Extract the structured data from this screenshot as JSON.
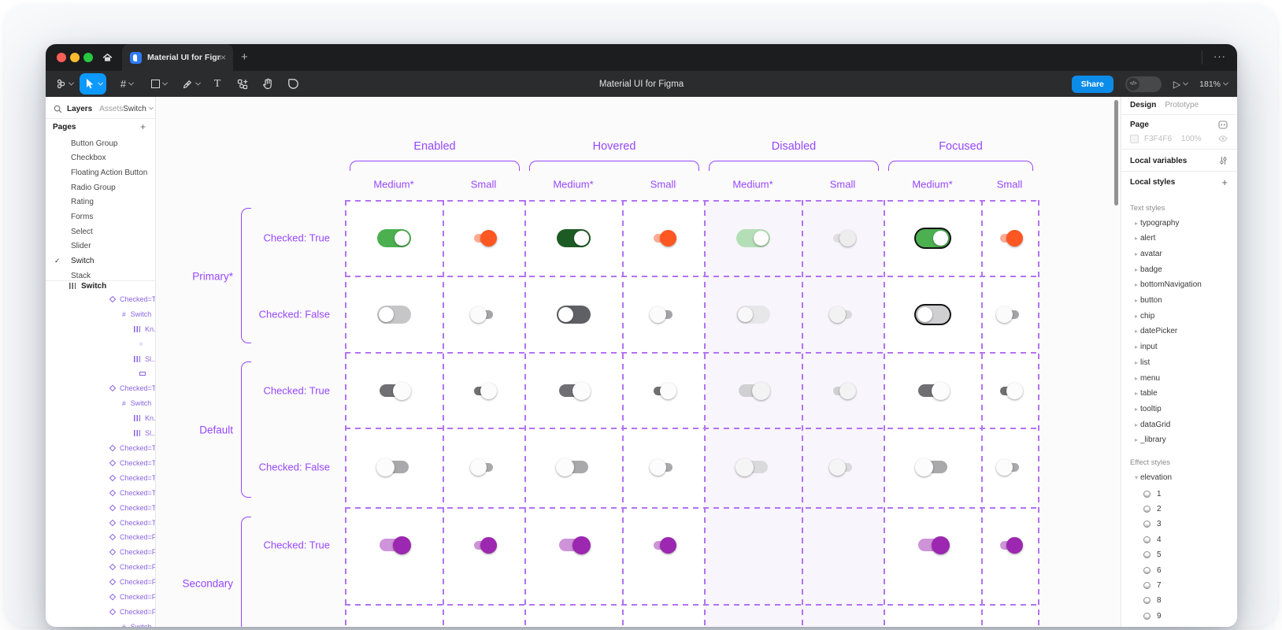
{
  "chrome": {
    "tab_title": "Material UI for Figma",
    "tab_close": "×",
    "new_tab": "+",
    "more_menu": "···",
    "window_title": "Material UI for Figma",
    "share_label": "Share",
    "dev_toggle_glyph": "</>",
    "play_glyph": "▷",
    "zoom_level": "181%"
  },
  "left_panel": {
    "tabs": {
      "layers": "Layers",
      "assets": "Assets"
    },
    "page_switcher": "Switch",
    "pages_header": "Pages",
    "add_page_glyph": "+",
    "active_page": "Switch",
    "pages": [
      "Button Group",
      "Checkbox",
      "Floating Action Button",
      "Radio Group",
      "Rating",
      "Forms",
      "Select",
      "Slider",
      "Switch",
      "Stack"
    ],
    "root_layer": {
      "icon": "autolayout",
      "label": "Switch"
    },
    "layers": [
      {
        "icon": "component",
        "label": "Checked=T...",
        "indent": 0
      },
      {
        "icon": "frame",
        "label": "Switch",
        "indent": 1
      },
      {
        "icon": "autolayout",
        "label": "Kn...",
        "indent": 2
      },
      {
        "icon": "ellipse",
        "label": "",
        "indent": 3
      },
      {
        "icon": "autolayout",
        "label": "Sl...",
        "indent": 2
      },
      {
        "icon": "rectangle",
        "label": "",
        "indent": 3
      },
      {
        "icon": "component",
        "label": "Checked=T...",
        "indent": 0
      },
      {
        "icon": "frame",
        "label": "Switch",
        "indent": 1
      },
      {
        "icon": "autolayout",
        "label": "Kn...",
        "indent": 2
      },
      {
        "icon": "autolayout",
        "label": "Sl...",
        "indent": 2
      },
      {
        "icon": "component",
        "label": "Checked=T...",
        "indent": 0
      },
      {
        "icon": "component",
        "label": "Checked=T...",
        "indent": 0
      },
      {
        "icon": "component",
        "label": "Checked=T...",
        "indent": 0
      },
      {
        "icon": "component",
        "label": "Checked=T...",
        "indent": 0
      },
      {
        "icon": "component",
        "label": "Checked=T...",
        "indent": 0
      },
      {
        "icon": "component",
        "label": "Checked=T...",
        "indent": 0
      },
      {
        "icon": "component",
        "label": "Checked=F...",
        "indent": 0
      },
      {
        "icon": "component",
        "label": "Checked=F...",
        "indent": 0
      },
      {
        "icon": "component",
        "label": "Checked=F...",
        "indent": 0
      },
      {
        "icon": "component",
        "label": "Checked=F...",
        "indent": 0
      },
      {
        "icon": "component",
        "label": "Checked=F...",
        "indent": 0
      },
      {
        "icon": "component",
        "label": "Checked=F...",
        "indent": 0
      },
      {
        "icon": "frame",
        "label": "Switch",
        "indent": 1
      }
    ]
  },
  "canvas": {
    "state_groups": [
      "Enabled",
      "Hovered",
      "Disabled",
      "Focused"
    ],
    "sizes": [
      "Medium*",
      "Small"
    ],
    "row_groups": [
      "Primary*",
      "Default",
      "Secondary"
    ],
    "row_labels": [
      "Checked: True",
      "Checked: False",
      "Checked: True",
      "Checked: False",
      "Checked: True"
    ],
    "cells": [
      {
        "r": 0,
        "c": 0,
        "t": "pill",
        "on": true,
        "tr": "#4caf50",
        "kn": "#ffffff"
      },
      {
        "r": 0,
        "c": 1,
        "t": "s",
        "on": true,
        "tr": "#ffab91",
        "kn": "#ff5722"
      },
      {
        "r": 0,
        "c": 2,
        "t": "pill",
        "on": true,
        "tr": "#1d5b24",
        "kn": "#ffffff"
      },
      {
        "r": 0,
        "c": 3,
        "t": "s",
        "on": true,
        "tr": "#ffab91",
        "kn": "#ff5722",
        "halo": "rgba(255,87,34,0.12)",
        "hs": 34
      },
      {
        "r": 0,
        "c": 4,
        "t": "pill",
        "on": true,
        "tr": "#b4dfb6",
        "kn": "#fdfdfd"
      },
      {
        "r": 0,
        "c": 5,
        "t": "s",
        "on": true,
        "tr": "#dfdfe2",
        "kn": "#ededee"
      },
      {
        "r": 0,
        "c": 6,
        "t": "pill",
        "on": true,
        "tr": "#4caf50",
        "kn": "#ffffff",
        "ring": "#121212"
      },
      {
        "r": 0,
        "c": 7,
        "t": "s",
        "on": true,
        "tr": "#ffab91",
        "kn": "#ff5722",
        "halo": "rgba(110,168,232,0.55)",
        "hs": 34
      },
      {
        "r": 1,
        "c": 0,
        "t": "pill",
        "on": false,
        "tr": "#c6c6c9",
        "kn": "#ffffff"
      },
      {
        "r": 1,
        "c": 1,
        "t": "s",
        "on": false,
        "tr": "#a4a4a8",
        "kn": "#fbfbfb"
      },
      {
        "r": 1,
        "c": 2,
        "t": "pill",
        "on": false,
        "tr": "#5e6065",
        "kn": "#ffffff"
      },
      {
        "r": 1,
        "c": 3,
        "t": "s",
        "on": false,
        "tr": "#a4a4a8",
        "kn": "#fbfbfb",
        "halo": "rgba(0,0,0,0.07)",
        "hs": 32
      },
      {
        "r": 1,
        "c": 4,
        "t": "pill",
        "on": false,
        "tr": "#e7e7ea",
        "kn": "#f8f8f8"
      },
      {
        "r": 1,
        "c": 5,
        "t": "s",
        "on": false,
        "tr": "#dadadd",
        "kn": "#f2f2f2"
      },
      {
        "r": 1,
        "c": 6,
        "t": "pill",
        "on": false,
        "tr": "#cfcfd2",
        "kn": "#ffffff",
        "ring": "#121212"
      },
      {
        "r": 1,
        "c": 7,
        "t": "s",
        "on": false,
        "tr": "#a4a4a8",
        "kn": "#fbfbfb",
        "halo": "rgba(0,0,0,0.05)",
        "hs": 30
      },
      {
        "r": 2,
        "c": 0,
        "t": "m",
        "on": true,
        "tr": "#707074",
        "kn": "#fcfcfc"
      },
      {
        "r": 2,
        "c": 1,
        "t": "s",
        "on": true,
        "tr": "#707074",
        "kn": "#fcfcfc"
      },
      {
        "r": 2,
        "c": 2,
        "t": "m",
        "on": true,
        "tr": "#707074",
        "kn": "#fcfcfc",
        "halo": "rgba(0,0,0,0.08)",
        "hs": 48
      },
      {
        "r": 2,
        "c": 3,
        "t": "s",
        "on": true,
        "tr": "#707074",
        "kn": "#fcfcfc",
        "halo": "rgba(0,0,0,0.06)",
        "hs": 34
      },
      {
        "r": 2,
        "c": 4,
        "t": "m",
        "on": true,
        "tr": "#d0d0d3",
        "kn": "#f3f3f4"
      },
      {
        "r": 2,
        "c": 5,
        "t": "s",
        "on": true,
        "tr": "#d0d0d3",
        "kn": "#f3f3f4"
      },
      {
        "r": 2,
        "c": 6,
        "t": "m",
        "on": true,
        "tr": "#707074",
        "kn": "#fcfcfc",
        "halo": "rgba(0,0,0,0.06)",
        "hs": 40
      },
      {
        "r": 2,
        "c": 7,
        "t": "s",
        "on": true,
        "tr": "#707074",
        "kn": "#fcfcfc",
        "halo": "rgba(0,0,0,0.05)",
        "hs": 30
      },
      {
        "r": 3,
        "c": 0,
        "t": "m",
        "on": false,
        "tr": "#a9a9ac",
        "kn": "#fcfcfc"
      },
      {
        "r": 3,
        "c": 1,
        "t": "s",
        "on": false,
        "tr": "#a9a9ac",
        "kn": "#fcfcfc"
      },
      {
        "r": 3,
        "c": 2,
        "t": "m",
        "on": false,
        "tr": "#a9a9ac",
        "kn": "#fcfcfc",
        "halo": "rgba(0,0,0,0.07)",
        "hs": 48
      },
      {
        "r": 3,
        "c": 3,
        "t": "s",
        "on": false,
        "tr": "#a9a9ac",
        "kn": "#fcfcfc",
        "halo": "rgba(0,0,0,0.05)",
        "hs": 32
      },
      {
        "r": 3,
        "c": 4,
        "t": "m",
        "on": false,
        "tr": "#dadadc",
        "kn": "#f5f5f5"
      },
      {
        "r": 3,
        "c": 5,
        "t": "s",
        "on": false,
        "tr": "#dadadc",
        "kn": "#f5f5f5"
      },
      {
        "r": 3,
        "c": 6,
        "t": "m",
        "on": false,
        "tr": "#a9a9ac",
        "kn": "#fcfcfc",
        "halo": "rgba(0,0,0,0.06)",
        "hs": 38
      },
      {
        "r": 3,
        "c": 7,
        "t": "s",
        "on": false,
        "tr": "#a9a9ac",
        "kn": "#fcfcfc",
        "halo": "rgba(0,0,0,0.05)",
        "hs": 28
      },
      {
        "r": 4,
        "c": 0,
        "t": "m",
        "on": true,
        "tr": "#ce93d8",
        "kn": "#9c27b0"
      },
      {
        "r": 4,
        "c": 1,
        "t": "s",
        "on": true,
        "tr": "#ce93d8",
        "kn": "#9c27b0"
      },
      {
        "r": 4,
        "c": 2,
        "t": "m",
        "on": true,
        "tr": "#ce93d8",
        "kn": "#9c27b0",
        "halo": "rgba(156,39,176,0.13)",
        "hs": 48
      },
      {
        "r": 4,
        "c": 3,
        "t": "s",
        "on": true,
        "tr": "#ce93d8",
        "kn": "#9c27b0",
        "halo": "rgba(156,39,176,0.10)",
        "hs": 30
      },
      {
        "r": 4,
        "c": 6,
        "t": "m",
        "on": true,
        "tr": "#ce93d8",
        "kn": "#9c27b0",
        "halo": "rgba(156,39,176,0.20)",
        "hs": 52
      },
      {
        "r": 4,
        "c": 7,
        "t": "s",
        "on": true,
        "tr": "#ce93d8",
        "kn": "#9c27b0",
        "halo": "rgba(156,39,176,0.20)",
        "hs": 36
      }
    ]
  },
  "right_panel": {
    "tabs": {
      "design": "Design",
      "prototype": "Prototype"
    },
    "page_section": {
      "label": "Page",
      "color": "F3F4F6",
      "opacity": "100%"
    },
    "local_variables_label": "Local variables",
    "local_styles_label": "Local styles",
    "add_style_glyph": "+",
    "text_styles_header": "Text styles",
    "text_styles": [
      "typography",
      "alert",
      "avatar",
      "badge",
      "bottomNavigation",
      "button",
      "chip",
      "datePicker",
      "input",
      "list",
      "menu",
      "table",
      "tooltip",
      "dataGrid",
      "_library"
    ],
    "effect_styles_header": "Effect styles",
    "effect_group": "elevation",
    "effects": [
      "1",
      "2",
      "3",
      "4",
      "5",
      "6",
      "7",
      "8",
      "9"
    ]
  },
  "colors": {
    "accent_blue": "#0d99ff",
    "share_blue": "#0c8ce9",
    "figma_purple": "#9747ff",
    "dash_purple": "#b273f2",
    "layer_purple": "#8a63e0",
    "primary_green": "#4caf50",
    "primary_small_orange": "#ff5722",
    "secondary_purple": "#9c27b0",
    "disabled_cell_bg": "#f8f5fd",
    "traffic_red": "#ff5f57",
    "traffic_yellow": "#febc2e",
    "traffic_green": "#28c840"
  }
}
